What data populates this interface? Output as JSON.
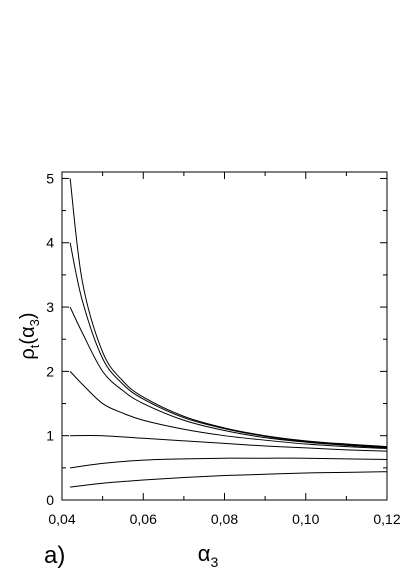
{
  "chart_data": {
    "type": "line",
    "panel_label": "a)",
    "xlabel": {
      "symbol": "α",
      "subscript": "3"
    },
    "ylabel": {
      "symbol": "ρ",
      "subscript": "t",
      "arg_symbol": "α",
      "arg_subscript": "3"
    },
    "xlim": [
      0.04,
      0.12
    ],
    "ylim": [
      0,
      5.1
    ],
    "x_ticks": [
      "0,04",
      "0,06",
      "0,08",
      "0,10",
      "0,12"
    ],
    "y_ticks": [
      "0",
      "1",
      "2",
      "3",
      "4",
      "5"
    ],
    "grid": false,
    "legend": "none",
    "line_color": "#000000",
    "series": [
      {
        "x": [
          0.042,
          0.045,
          0.05,
          0.055,
          0.06,
          0.07,
          0.08,
          0.09,
          0.1,
          0.11,
          0.12
        ],
        "values": [
          5.0,
          3.4,
          2.3,
          1.85,
          1.6,
          1.3,
          1.12,
          1.0,
          0.92,
          0.87,
          0.83
        ]
      },
      {
        "x": [
          0.042,
          0.045,
          0.05,
          0.055,
          0.06,
          0.07,
          0.08,
          0.09,
          0.1,
          0.11,
          0.12
        ],
        "values": [
          4.0,
          3.1,
          2.2,
          1.8,
          1.57,
          1.28,
          1.11,
          0.99,
          0.91,
          0.86,
          0.82
        ]
      },
      {
        "x": [
          0.042,
          0.045,
          0.05,
          0.055,
          0.06,
          0.07,
          0.08,
          0.09,
          0.1,
          0.11,
          0.12
        ],
        "values": [
          3.0,
          2.6,
          2.0,
          1.7,
          1.5,
          1.24,
          1.08,
          0.97,
          0.9,
          0.85,
          0.81
        ]
      },
      {
        "x": [
          0.042,
          0.045,
          0.05,
          0.055,
          0.06,
          0.07,
          0.08,
          0.09,
          0.1,
          0.11,
          0.12
        ],
        "values": [
          2.0,
          1.8,
          1.5,
          1.35,
          1.24,
          1.1,
          1.0,
          0.93,
          0.87,
          0.83,
          0.8
        ]
      },
      {
        "x": [
          0.042,
          0.05,
          0.06,
          0.07,
          0.08,
          0.09,
          0.1,
          0.11,
          0.12
        ],
        "values": [
          1.0,
          1.0,
          0.96,
          0.92,
          0.88,
          0.84,
          0.81,
          0.78,
          0.76
        ]
      },
      {
        "x": [
          0.042,
          0.05,
          0.06,
          0.07,
          0.08,
          0.09,
          0.1,
          0.11,
          0.12
        ],
        "values": [
          0.5,
          0.57,
          0.62,
          0.64,
          0.65,
          0.65,
          0.65,
          0.64,
          0.63
        ]
      },
      {
        "x": [
          0.042,
          0.05,
          0.06,
          0.07,
          0.08,
          0.09,
          0.1,
          0.11,
          0.12
        ],
        "values": [
          0.2,
          0.26,
          0.31,
          0.35,
          0.38,
          0.4,
          0.42,
          0.43,
          0.44
        ]
      }
    ]
  }
}
